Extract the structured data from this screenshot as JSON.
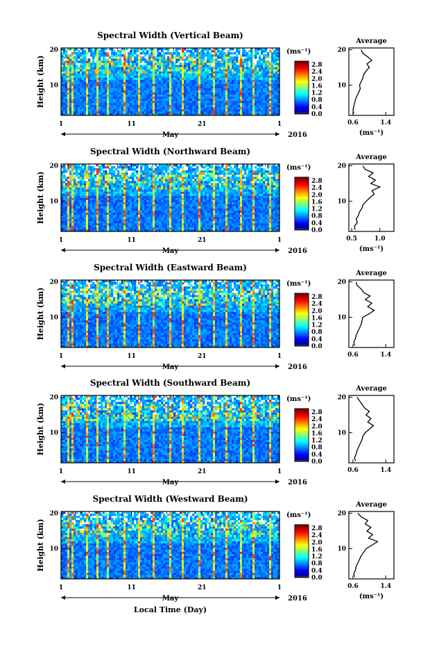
{
  "chart_data": [
    {
      "type": "heatmap",
      "title": "Spectral Width (Vertical Beam)",
      "ylabel": "Height (km)",
      "yticks": [
        "20",
        "10"
      ],
      "xticks": [
        "1",
        "11",
        "21",
        "1"
      ],
      "month": "May",
      "year": "2016",
      "ylim": [
        1.5,
        20.5
      ],
      "colorbar": {
        "unit": "(ms⁻¹)",
        "ticks": [
          "2.8",
          "2.4",
          "2.0",
          "1.6",
          "1.2",
          "0.8",
          "0.4",
          "0.0"
        ],
        "range": [
          0.0,
          3.0
        ]
      },
      "average": {
        "title": "Average",
        "xlabel": "(ms⁻¹)",
        "xticks": [
          "0.6",
          "1.4"
        ],
        "xlim": [
          0.5,
          1.6
        ],
        "yticks": [
          "20",
          "10"
        ],
        "profile": [
          [
            0.62,
            2
          ],
          [
            0.6,
            3
          ],
          [
            0.62,
            4
          ],
          [
            0.64,
            5
          ],
          [
            0.66,
            6
          ],
          [
            0.7,
            7
          ],
          [
            0.74,
            8
          ],
          [
            0.78,
            9
          ],
          [
            0.76,
            10
          ],
          [
            0.8,
            11
          ],
          [
            0.84,
            12
          ],
          [
            0.86,
            13
          ],
          [
            0.92,
            14
          ],
          [
            1.0,
            15
          ],
          [
            0.94,
            16
          ],
          [
            1.06,
            17
          ],
          [
            0.96,
            18
          ],
          [
            0.84,
            19
          ],
          [
            0.8,
            20
          ]
        ]
      }
    },
    {
      "type": "heatmap",
      "title": "Spectral Width (Northward Beam)",
      "ylabel": "Height (km)",
      "yticks": [
        "20",
        "10"
      ],
      "xticks": [
        "1",
        "11",
        "21",
        "1"
      ],
      "month": "May",
      "year": "2016",
      "ylim": [
        1.5,
        20.5
      ],
      "colorbar": {
        "unit": "(ms⁻¹)",
        "ticks": [
          "2.8",
          "2.4",
          "2.0",
          "1.6",
          "1.2",
          "0.8",
          "0.4",
          "0.0"
        ],
        "range": [
          0.0,
          3.0
        ]
      },
      "average": {
        "title": "Average",
        "xlabel": "(ms⁻¹)",
        "xticks": [
          "0.5",
          "1.0"
        ],
        "xlim": [
          0.45,
          1.25
        ],
        "yticks": [
          "20",
          "10"
        ],
        "profile": [
          [
            0.56,
            2
          ],
          [
            0.55,
            3
          ],
          [
            0.6,
            4
          ],
          [
            0.58,
            5
          ],
          [
            0.62,
            6
          ],
          [
            0.64,
            7
          ],
          [
            0.68,
            8
          ],
          [
            0.7,
            9
          ],
          [
            0.76,
            10
          ],
          [
            0.82,
            11
          ],
          [
            0.9,
            12
          ],
          [
            0.86,
            13
          ],
          [
            1.0,
            14
          ],
          [
            0.84,
            15
          ],
          [
            0.92,
            16
          ],
          [
            0.8,
            17
          ],
          [
            0.88,
            18
          ],
          [
            0.74,
            19
          ],
          [
            0.7,
            20
          ]
        ]
      }
    },
    {
      "type": "heatmap",
      "title": "Spectral Width (Eastward Beam)",
      "ylabel": "Height (km)",
      "yticks": [
        "20",
        "10"
      ],
      "xticks": [
        "1",
        "11",
        "21",
        "1"
      ],
      "month": "May",
      "year": "2016",
      "ylim": [
        1.5,
        20.5
      ],
      "colorbar": {
        "unit": "(ms⁻¹)",
        "ticks": [
          "2.8",
          "2.4",
          "2.0",
          "1.6",
          "1.2",
          "0.8",
          "0.4",
          "0.0"
        ],
        "range": [
          0.0,
          3.0
        ]
      },
      "average": {
        "title": "Average",
        "xlabel": "",
        "xticks": [
          "0.6",
          "1.4"
        ],
        "xlim": [
          0.5,
          1.6
        ],
        "yticks": [
          "20",
          "10"
        ],
        "profile": [
          [
            0.64,
            2
          ],
          [
            0.62,
            3
          ],
          [
            0.66,
            4
          ],
          [
            0.68,
            5
          ],
          [
            0.72,
            6
          ],
          [
            0.76,
            7
          ],
          [
            0.8,
            8
          ],
          [
            0.82,
            9
          ],
          [
            0.84,
            10
          ],
          [
            1.0,
            11
          ],
          [
            1.12,
            12
          ],
          [
            0.96,
            13
          ],
          [
            1.06,
            14
          ],
          [
            0.9,
            15
          ],
          [
            1.02,
            16
          ],
          [
            0.86,
            17
          ],
          [
            0.8,
            18
          ],
          [
            0.7,
            19
          ],
          [
            0.68,
            20
          ]
        ]
      }
    },
    {
      "type": "heatmap",
      "title": "Spectral Width (Southward Beam)",
      "ylabel": "Height (km)",
      "yticks": [
        "20",
        "10"
      ],
      "xticks": [
        "1",
        "11",
        "21",
        "1"
      ],
      "month": "May",
      "year": "2016",
      "ylim": [
        1.5,
        20.5
      ],
      "colorbar": {
        "unit": "(ms⁻¹)",
        "ticks": [
          "2.8",
          "2.4",
          "2.0",
          "1.6",
          "1.2",
          "0.8",
          "0.4",
          "0.0"
        ],
        "range": [
          0.0,
          3.0
        ]
      },
      "average": {
        "title": "Average",
        "xlabel": "",
        "xticks": [
          "0.6",
          "1.4"
        ],
        "xlim": [
          0.5,
          1.6
        ],
        "yticks": [
          "20",
          "10"
        ],
        "profile": [
          [
            0.66,
            2
          ],
          [
            0.64,
            3
          ],
          [
            0.68,
            4
          ],
          [
            0.7,
            5
          ],
          [
            0.74,
            6
          ],
          [
            0.78,
            7
          ],
          [
            0.82,
            8
          ],
          [
            0.84,
            9
          ],
          [
            0.9,
            10
          ],
          [
            1.0,
            11
          ],
          [
            1.1,
            12
          ],
          [
            0.96,
            13
          ],
          [
            1.04,
            14
          ],
          [
            0.92,
            15
          ],
          [
            1.0,
            16
          ],
          [
            0.88,
            17
          ],
          [
            0.82,
            18
          ],
          [
            0.76,
            19
          ],
          [
            0.7,
            20
          ]
        ]
      }
    },
    {
      "type": "heatmap",
      "title": "Spectral Width (Westward Beam)",
      "ylabel": "Height (km)",
      "yticks": [
        "20",
        "10"
      ],
      "xticks": [
        "1",
        "11",
        "21",
        "1"
      ],
      "month": "May",
      "year": "2016",
      "xlabel": "Local Time (Day)",
      "ylim": [
        1.5,
        20.5
      ],
      "colorbar": {
        "unit": "(ms⁻¹)",
        "ticks": [
          "2.8",
          "2.4",
          "2.0",
          "1.6",
          "1.2",
          "0.8",
          "0.4",
          "0.0"
        ],
        "range": [
          0.0,
          3.0
        ]
      },
      "average": {
        "title": "Average",
        "xlabel": "(ms⁻¹)",
        "xticks": [
          "0.6",
          "1.4"
        ],
        "xlim": [
          0.5,
          1.6
        ],
        "yticks": [
          "20",
          "10"
        ],
        "profile": [
          [
            0.64,
            2
          ],
          [
            0.62,
            3
          ],
          [
            0.66,
            4
          ],
          [
            0.68,
            5
          ],
          [
            0.72,
            6
          ],
          [
            0.76,
            7
          ],
          [
            0.8,
            8
          ],
          [
            0.86,
            9
          ],
          [
            0.92,
            10
          ],
          [
            1.06,
            11
          ],
          [
            1.2,
            12
          ],
          [
            0.98,
            13
          ],
          [
            1.08,
            14
          ],
          [
            0.94,
            15
          ],
          [
            1.04,
            16
          ],
          [
            0.9,
            17
          ],
          [
            0.96,
            18
          ],
          [
            0.8,
            19
          ],
          [
            0.72,
            20
          ]
        ]
      }
    }
  ]
}
